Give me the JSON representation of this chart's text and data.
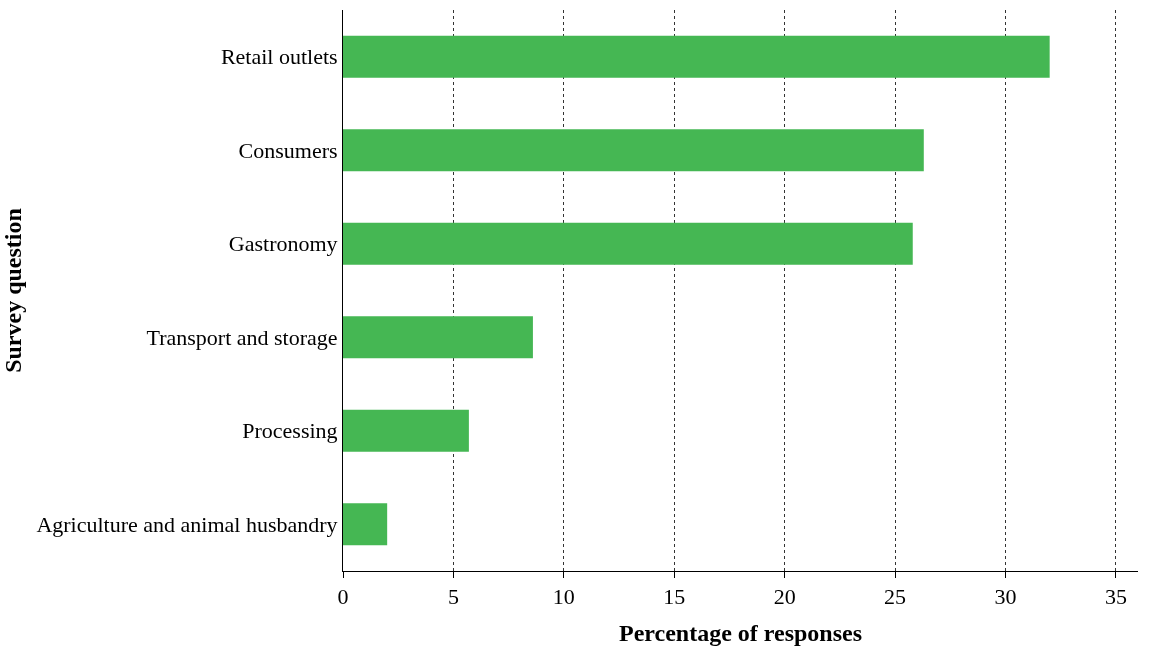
{
  "chart_data": {
    "type": "bar",
    "orientation": "horizontal",
    "xlabel": "Percentage of responses",
    "ylabel": "Survey question",
    "categories": [
      "Retail outlets",
      "Consumers",
      "Gastronomy",
      "Transport and storage",
      "Processing",
      "Agriculture and animal husbandry"
    ],
    "values": [
      32.0,
      26.3,
      25.8,
      8.6,
      5.7,
      2.0
    ],
    "color": "#45b753",
    "xlim": [
      0,
      36
    ],
    "xticks": [
      0,
      5,
      10,
      15,
      20,
      25,
      30,
      35
    ],
    "grid": "x"
  }
}
